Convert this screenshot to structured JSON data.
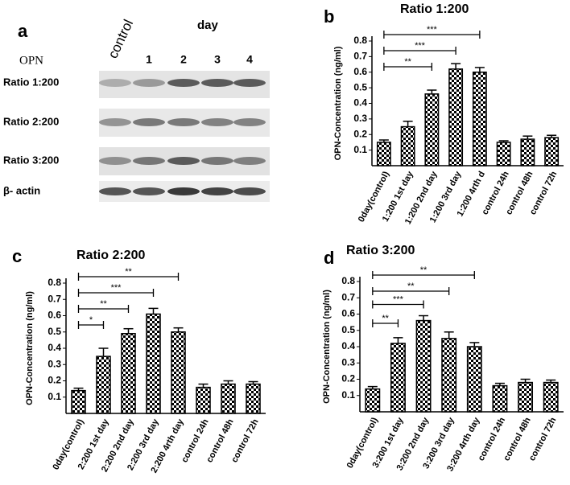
{
  "blot": {
    "panel": "a",
    "header": "day",
    "protein": "OPN",
    "lanes": [
      "control",
      "1",
      "2",
      "3",
      "4"
    ],
    "rows": [
      "Ratio 1:200",
      "Ratio 2:200",
      "Ratio 3:200",
      "β- actin"
    ]
  },
  "chart_data": [
    {
      "type": "bar",
      "panel": "b",
      "title": "Ratio 1:200",
      "ylabel": "OPN-Concentration (ng/ml)",
      "categories": [
        "0day(control)",
        "1:200 1st day",
        "1:200 2nd day",
        "1:200 3rd day",
        "1:200 4rth d",
        "control 24h",
        "control 48h",
        "control 72h"
      ],
      "values": [
        0.15,
        0.25,
        0.46,
        0.62,
        0.6,
        0.15,
        0.17,
        0.18
      ],
      "errors": [
        0.015,
        0.035,
        0.025,
        0.035,
        0.03,
        0.01,
        0.02,
        0.015
      ],
      "color": "#000000",
      "ylim": [
        0,
        0.8
      ],
      "yticks": [
        0.1,
        0.2,
        0.3,
        0.4,
        0.5,
        0.6,
        0.7,
        0.8
      ],
      "annotations": [
        {
          "text": "**",
          "from": 0,
          "to": 2
        },
        {
          "text": "***",
          "from": 0,
          "to": 3
        },
        {
          "text": "***",
          "from": 0,
          "to": 4
        }
      ]
    },
    {
      "type": "bar",
      "panel": "c",
      "title": "Ratio 2:200",
      "ylabel": "OPN-Concentration (ng/ml)",
      "categories": [
        "0day(control)",
        "2:200 1st day",
        "2:200 2nd day",
        "2:200 3rd day",
        "2:200 4rth day",
        "control 24h",
        "control 48h",
        "control 72h"
      ],
      "values": [
        0.14,
        0.35,
        0.49,
        0.61,
        0.5,
        0.16,
        0.18,
        0.18
      ],
      "errors": [
        0.015,
        0.05,
        0.03,
        0.035,
        0.025,
        0.02,
        0.02,
        0.015
      ],
      "color": "#000000",
      "ylim": [
        0,
        0.8
      ],
      "yticks": [
        0.1,
        0.2,
        0.3,
        0.4,
        0.5,
        0.6,
        0.7,
        0.8
      ],
      "annotations": [
        {
          "text": "*",
          "from": 0,
          "to": 1
        },
        {
          "text": "**",
          "from": 0,
          "to": 2
        },
        {
          "text": "***",
          "from": 0,
          "to": 3
        },
        {
          "text": "**",
          "from": 0,
          "to": 4
        }
      ]
    },
    {
      "type": "bar",
      "panel": "d",
      "title": "Ratio 3:200",
      "ylabel": "OPN-Concentration (ng/ml)",
      "categories": [
        "0day(control)",
        "3:200 1st day",
        "3:200 2nd day",
        "3:200 3rd day",
        "3:200 4rth day",
        "control 24h",
        "control 48h",
        "control 72h"
      ],
      "values": [
        0.14,
        0.42,
        0.56,
        0.45,
        0.4,
        0.16,
        0.18,
        0.18
      ],
      "errors": [
        0.015,
        0.035,
        0.03,
        0.04,
        0.025,
        0.015,
        0.02,
        0.015
      ],
      "color": "#000000",
      "ylim": [
        0,
        0.8
      ],
      "yticks": [
        0.1,
        0.2,
        0.3,
        0.4,
        0.5,
        0.6,
        0.7,
        0.8
      ],
      "annotations": [
        {
          "text": "**",
          "from": 0,
          "to": 1
        },
        {
          "text": "***",
          "from": 0,
          "to": 2
        },
        {
          "text": "**",
          "from": 0,
          "to": 3
        },
        {
          "text": "**",
          "from": 0,
          "to": 4
        }
      ]
    }
  ]
}
